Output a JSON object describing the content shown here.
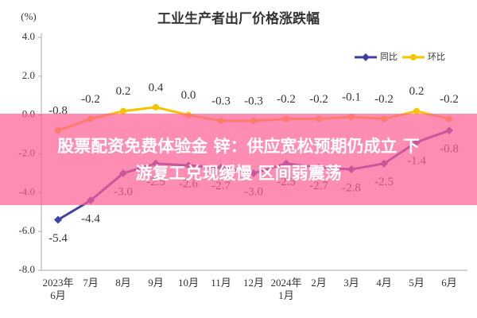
{
  "chart_data": {
    "type": "line",
    "title": "工业生产者出厂价格涨跌幅",
    "y_unit_label": "(%)",
    "categories": [
      "2023年6月",
      "7月",
      "8月",
      "9月",
      "10月",
      "11月",
      "12月",
      "2024年1月",
      "2月",
      "3月",
      "4月",
      "5月",
      "6月"
    ],
    "series": [
      {
        "name": "同比",
        "color": "#3f42a6",
        "marker": "diamond",
        "values": [
          -5.4,
          -4.4,
          -3.0,
          -2.5,
          -2.6,
          -2.7,
          -3.0,
          -2.5,
          -2.7,
          -2.8,
          -2.5,
          -1.4,
          -0.8
        ],
        "value_labels": [
          "-5.4",
          "-4.4",
          "-3.0",
          "-2.5",
          "-2.6",
          "-2.7",
          "-3.0",
          "-2.5",
          "-2.7",
          "-2.8",
          "-2.5",
          "-1.4",
          "-0.8"
        ]
      },
      {
        "name": "环比",
        "color": "#f5c300",
        "marker": "circle",
        "values": [
          -0.8,
          -0.2,
          0.2,
          0.4,
          0.0,
          -0.3,
          -0.3,
          -0.2,
          -0.2,
          -0.1,
          -0.2,
          0.2,
          -0.2
        ],
        "value_labels": [
          "-0.8",
          "-0.2",
          "0.2",
          "0.4",
          "0.0",
          "-0.3",
          "-0.3",
          "-0.2",
          "-0.2",
          "-0.1",
          "-0.2",
          "0.2",
          "-0.2"
        ]
      }
    ],
    "ylim": [
      -8,
      4
    ],
    "yticks": [
      {
        "value": -8,
        "label": "-8.0"
      },
      {
        "value": -6,
        "label": "-6.0"
      },
      {
        "value": -4,
        "label": "-4.0"
      },
      {
        "value": -2,
        "label": "-2.0"
      },
      {
        "value": 0,
        "label": "0.0"
      },
      {
        "value": 2,
        "label": "2.0"
      },
      {
        "value": 4,
        "label": "4.0"
      }
    ],
    "legend": "top-right"
  },
  "banner": {
    "lines": [
      "股票配资免费体验金 锌：供应宽松预期仍成立 下",
      "游复工兑现缓慢 区间弱震荡"
    ]
  }
}
